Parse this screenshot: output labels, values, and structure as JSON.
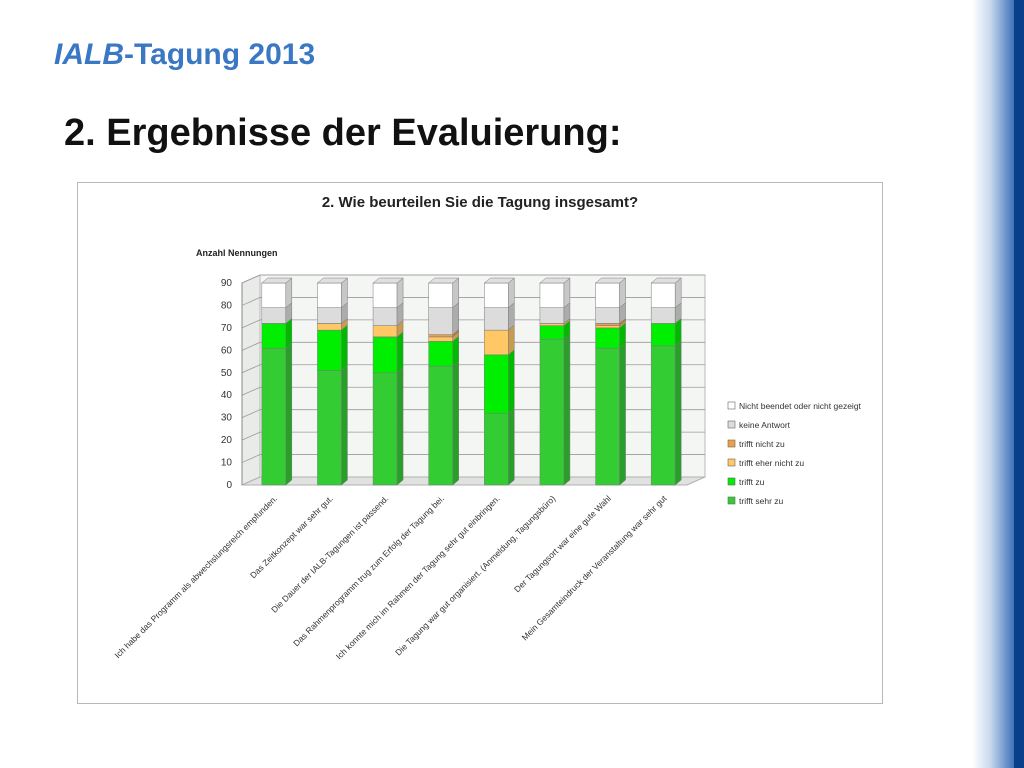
{
  "slide": {
    "header_prefix": "IALB",
    "header_suffix": "-Tagung 2013",
    "title": "2. Ergebnisse der Evaluierung:"
  },
  "chart_data": {
    "type": "bar",
    "stacked": true,
    "three_d": true,
    "title": "2. Wie beurteilen Sie die Tagung insgesamt?",
    "ylabel": "Anzahl Nennungen",
    "xlabel": "",
    "ylim": [
      0,
      90
    ],
    "yticks": [
      "0",
      "10",
      "20",
      "30",
      "40",
      "50",
      "60",
      "70",
      "80",
      "90"
    ],
    "grid": true,
    "legend_position": "right",
    "categories": [
      "Ich habe das Programm als abwechslungsreich empfunden.",
      "Das Zeitkonzept war sehr gut.",
      "Die Dauer der IALB-Tagungen ist passend.",
      "Das Rahmenprogramm trug zum Erfolg der Tagung bei.",
      "Ich konnte mich im Rahmen der Tagung sehr gut einbringen.",
      "Die Tagung war gut organisiert. (Anmeldung, Tagungsbüro)",
      "Der Tagungsort war eine gute Wahl",
      "Mein Gesamteindruck der Veranstaltung war sehr gut"
    ],
    "series": [
      {
        "name": "trifft sehr zu",
        "color": "#33cc33",
        "values": [
          61,
          51,
          50,
          53,
          32,
          65,
          61,
          62
        ]
      },
      {
        "name": "trifft zu",
        "color": "#00ee00",
        "values": [
          11,
          18,
          16,
          11,
          26,
          6,
          9,
          10
        ]
      },
      {
        "name": "trifft eher nicht zu",
        "color": "#ffc766",
        "values": [
          0,
          3,
          5,
          2,
          11,
          1,
          1,
          0
        ]
      },
      {
        "name": "trifft nicht zu",
        "color": "#f0a040",
        "values": [
          0,
          0,
          0,
          1,
          0,
          0,
          1,
          0
        ]
      },
      {
        "name": "keine Antwort",
        "color": "#dcdcdc",
        "values": [
          7,
          7,
          8,
          12,
          10,
          7,
          7,
          7
        ]
      },
      {
        "name": "Nicht beendet oder nicht gezeigt",
        "color": "#ffffff",
        "values": [
          11,
          11,
          11,
          11,
          11,
          11,
          11,
          11
        ]
      }
    ],
    "legend_order": [
      "Nicht beendet oder nicht gezeigt",
      "keine Antwort",
      "trifft nicht zu",
      "trifft eher nicht zu",
      "trifft zu",
      "trifft sehr zu"
    ]
  }
}
